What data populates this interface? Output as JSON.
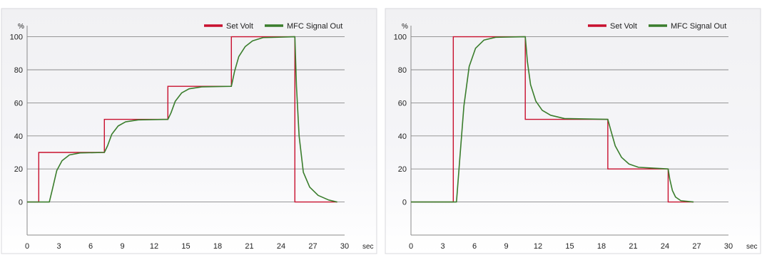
{
  "chart_data": [
    {
      "type": "line",
      "ylabel": "%",
      "xlabel": "sec",
      "x_ticks": [
        "0",
        "3",
        "6",
        "9",
        "12",
        "15",
        "18",
        "21",
        "24",
        "27",
        "30"
      ],
      "y_ticks": [
        "0",
        "20",
        "40",
        "60",
        "80",
        "100"
      ],
      "xlim": [
        0,
        30
      ],
      "ylim": [
        -20,
        105
      ],
      "grid": "horizontal",
      "legend_position": "top-right",
      "colors": {
        "set_volt": "#c8102e",
        "mfc_signal": "#3a7d2c"
      },
      "series": [
        {
          "name": "Set Volt",
          "points": [
            [
              0,
              0
            ],
            [
              1.1,
              0
            ],
            [
              1.1,
              30
            ],
            [
              7.3,
              30
            ],
            [
              7.3,
              50
            ],
            [
              13.3,
              50
            ],
            [
              13.3,
              70
            ],
            [
              19.3,
              70
            ],
            [
              19.3,
              100
            ],
            [
              25.3,
              100
            ],
            [
              25.3,
              0
            ],
            [
              29.3,
              0
            ]
          ]
        },
        {
          "name": "MFC Signal Out",
          "points": [
            [
              0,
              0
            ],
            [
              2.1,
              0
            ],
            [
              2.4,
              8
            ],
            [
              2.8,
              19
            ],
            [
              3.3,
              25
            ],
            [
              4.0,
              28.5
            ],
            [
              5.0,
              29.7
            ],
            [
              7.3,
              30
            ],
            [
              7.6,
              34
            ],
            [
              8.0,
              41
            ],
            [
              8.6,
              46
            ],
            [
              9.3,
              48.5
            ],
            [
              10.5,
              49.7
            ],
            [
              13.3,
              50
            ],
            [
              13.6,
              54
            ],
            [
              14.0,
              61
            ],
            [
              14.6,
              66
            ],
            [
              15.3,
              68.5
            ],
            [
              16.5,
              69.7
            ],
            [
              19.3,
              70
            ],
            [
              19.6,
              79
            ],
            [
              20.0,
              88
            ],
            [
              20.6,
              94
            ],
            [
              21.3,
              97.5
            ],
            [
              22.3,
              99.5
            ],
            [
              25.3,
              100
            ],
            [
              25.45,
              70
            ],
            [
              25.7,
              40
            ],
            [
              26.1,
              18
            ],
            [
              26.7,
              9
            ],
            [
              27.5,
              4
            ],
            [
              28.5,
              1.2
            ],
            [
              29.3,
              0
            ]
          ]
        }
      ]
    },
    {
      "type": "line",
      "ylabel": "%",
      "xlabel": "sec",
      "x_ticks": [
        "0",
        "3",
        "6",
        "9",
        "12",
        "15",
        "18",
        "21",
        "24",
        "27",
        "30"
      ],
      "y_ticks": [
        "0",
        "20",
        "40",
        "60",
        "80",
        "100"
      ],
      "xlim": [
        0,
        30
      ],
      "ylim": [
        -20,
        105
      ],
      "grid": "horizontal",
      "legend_position": "top-right",
      "colors": {
        "set_volt": "#c8102e",
        "mfc_signal": "#3a7d2c"
      },
      "series": [
        {
          "name": "Set Volt",
          "points": [
            [
              0,
              0
            ],
            [
              4.0,
              0
            ],
            [
              4.0,
              100
            ],
            [
              10.8,
              100
            ],
            [
              10.8,
              50
            ],
            [
              18.6,
              50
            ],
            [
              18.6,
              20
            ],
            [
              24.3,
              20
            ],
            [
              24.3,
              0
            ],
            [
              26.7,
              0
            ]
          ]
        },
        {
          "name": "MFC Signal Out",
          "points": [
            [
              0,
              0
            ],
            [
              4.3,
              0
            ],
            [
              4.6,
              25
            ],
            [
              5.0,
              58
            ],
            [
              5.5,
              82
            ],
            [
              6.1,
              93
            ],
            [
              6.9,
              98
            ],
            [
              8.0,
              99.7
            ],
            [
              10.8,
              100
            ],
            [
              11.0,
              85
            ],
            [
              11.3,
              71
            ],
            [
              11.8,
              61
            ],
            [
              12.4,
              55.5
            ],
            [
              13.2,
              52.5
            ],
            [
              14.5,
              50.5
            ],
            [
              18.6,
              50
            ],
            [
              18.9,
              43
            ],
            [
              19.3,
              34
            ],
            [
              19.9,
              27
            ],
            [
              20.6,
              23
            ],
            [
              21.5,
              21
            ],
            [
              24.3,
              20
            ],
            [
              24.45,
              14
            ],
            [
              24.7,
              7
            ],
            [
              25.0,
              3
            ],
            [
              25.5,
              0.8
            ],
            [
              26.7,
              0
            ]
          ]
        }
      ]
    }
  ]
}
